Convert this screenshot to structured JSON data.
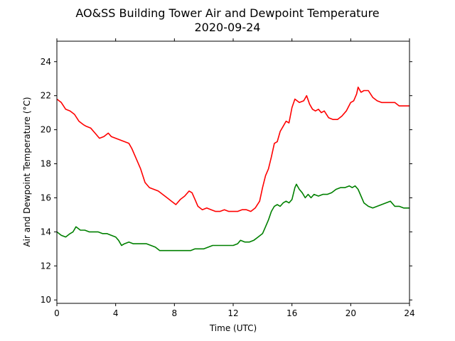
{
  "chart_data": {
    "type": "line",
    "title": "AO&SS Building Tower Air and Dewpoint Temperature",
    "subtitle": "2020-09-24",
    "xlabel": "Time (UTC)",
    "ylabel": "Air and Dewpoint Temperature (°C)",
    "xlim": [
      0,
      24
    ],
    "ylim": [
      9.8,
      25.2
    ],
    "xticks": [
      0,
      4,
      8,
      12,
      16,
      20,
      24
    ],
    "yticks": [
      10,
      12,
      14,
      16,
      18,
      20,
      22,
      24
    ],
    "grid": false,
    "series": [
      {
        "color": "#ff0000",
        "x": [
          0,
          0.3,
          0.6,
          0.9,
          1.2,
          1.5,
          1.8,
          2.0,
          2.3,
          2.6,
          2.9,
          3.2,
          3.5,
          3.7,
          4.0,
          4.3,
          4.6,
          4.9,
          5.1,
          5.4,
          5.7,
          6.0,
          6.3,
          6.6,
          6.9,
          7.2,
          7.5,
          7.8,
          8.1,
          8.4,
          8.7,
          9.0,
          9.2,
          9.4,
          9.6,
          9.9,
          10.2,
          10.5,
          10.8,
          11.1,
          11.4,
          11.7,
          12.0,
          12.3,
          12.6,
          12.9,
          13.2,
          13.5,
          13.8,
          14.0,
          14.2,
          14.4,
          14.6,
          14.8,
          15.0,
          15.2,
          15.4,
          15.6,
          15.8,
          16.0,
          16.2,
          16.5,
          16.8,
          17.0,
          17.2,
          17.4,
          17.6,
          17.8,
          18.0,
          18.2,
          18.5,
          18.8,
          19.1,
          19.4,
          19.7,
          20.0,
          20.2,
          20.4,
          20.5,
          20.7,
          20.9,
          21.2,
          21.5,
          21.8,
          22.1,
          22.4,
          22.7,
          23.0,
          23.3,
          23.6,
          24.0
        ],
        "y": [
          21.8,
          21.6,
          21.2,
          21.1,
          20.9,
          20.5,
          20.3,
          20.2,
          20.1,
          19.8,
          19.5,
          19.6,
          19.8,
          19.6,
          19.5,
          19.4,
          19.3,
          19.2,
          18.9,
          18.3,
          17.7,
          16.9,
          16.6,
          16.5,
          16.4,
          16.2,
          16.0,
          15.8,
          15.6,
          15.9,
          16.1,
          16.4,
          16.3,
          15.9,
          15.5,
          15.3,
          15.4,
          15.3,
          15.2,
          15.2,
          15.3,
          15.2,
          15.2,
          15.2,
          15.3,
          15.3,
          15.2,
          15.4,
          15.8,
          16.6,
          17.3,
          17.7,
          18.4,
          19.2,
          19.3,
          19.9,
          20.2,
          20.5,
          20.4,
          21.3,
          21.8,
          21.6,
          21.7,
          22.0,
          21.5,
          21.2,
          21.1,
          21.2,
          21.0,
          21.1,
          20.7,
          20.6,
          20.6,
          20.8,
          21.1,
          21.6,
          21.7,
          22.1,
          22.5,
          22.2,
          22.3,
          22.3,
          21.9,
          21.7,
          21.6,
          21.6,
          21.6,
          21.6,
          21.4,
          21.4,
          21.4
        ]
      },
      {
        "color": "#008000",
        "x": [
          0,
          0.3,
          0.6,
          0.9,
          1.1,
          1.3,
          1.6,
          1.9,
          2.2,
          2.5,
          2.8,
          3.1,
          3.4,
          3.7,
          4.0,
          4.2,
          4.4,
          4.6,
          4.9,
          5.2,
          5.5,
          5.8,
          6.1,
          6.4,
          6.7,
          7.0,
          7.3,
          7.6,
          7.9,
          8.2,
          8.5,
          8.8,
          9.1,
          9.4,
          9.7,
          10.0,
          10.3,
          10.6,
          10.9,
          11.2,
          11.5,
          11.8,
          12.0,
          12.3,
          12.5,
          12.8,
          13.1,
          13.4,
          13.7,
          14.0,
          14.2,
          14.4,
          14.6,
          14.8,
          15.0,
          15.2,
          15.4,
          15.6,
          15.8,
          16.0,
          16.2,
          16.3,
          16.5,
          16.7,
          16.9,
          17.1,
          17.3,
          17.5,
          17.8,
          18.1,
          18.4,
          18.7,
          19.0,
          19.3,
          19.6,
          19.9,
          20.1,
          20.3,
          20.5,
          20.7,
          20.9,
          21.2,
          21.5,
          21.8,
          22.1,
          22.4,
          22.7,
          23.0,
          23.3,
          23.6,
          24.0
        ],
        "y": [
          14.0,
          13.8,
          13.7,
          13.9,
          14.0,
          14.3,
          14.1,
          14.1,
          14.0,
          14.0,
          14.0,
          13.9,
          13.9,
          13.8,
          13.7,
          13.5,
          13.2,
          13.3,
          13.4,
          13.3,
          13.3,
          13.3,
          13.3,
          13.2,
          13.1,
          12.9,
          12.9,
          12.9,
          12.9,
          12.9,
          12.9,
          12.9,
          12.9,
          13.0,
          13.0,
          13.0,
          13.1,
          13.2,
          13.2,
          13.2,
          13.2,
          13.2,
          13.2,
          13.3,
          13.5,
          13.4,
          13.4,
          13.5,
          13.7,
          13.9,
          14.3,
          14.7,
          15.2,
          15.5,
          15.6,
          15.5,
          15.7,
          15.8,
          15.7,
          15.9,
          16.6,
          16.8,
          16.5,
          16.3,
          16.0,
          16.2,
          16.0,
          16.2,
          16.1,
          16.2,
          16.2,
          16.3,
          16.5,
          16.6,
          16.6,
          16.7,
          16.6,
          16.7,
          16.5,
          16.1,
          15.7,
          15.5,
          15.4,
          15.5,
          15.6,
          15.7,
          15.8,
          15.5,
          15.5,
          15.4,
          15.4
        ]
      }
    ]
  }
}
